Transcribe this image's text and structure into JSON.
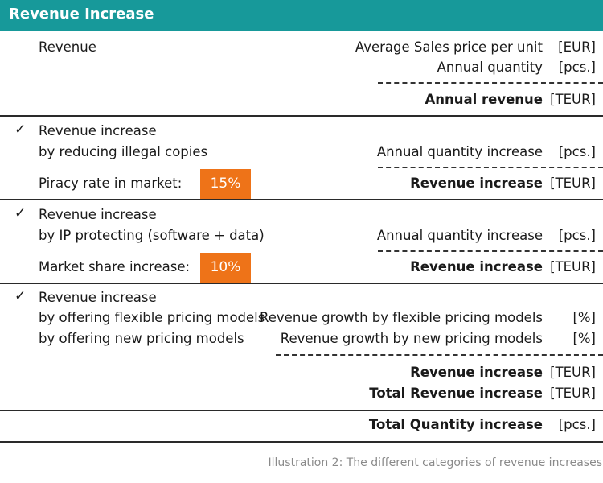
{
  "header": {
    "title": "Revenue Increase"
  },
  "section1": {
    "label": "Revenue",
    "lines": [
      {
        "text": "Average Sales price per unit",
        "unit": "[EUR]"
      },
      {
        "text": "Annual quantity",
        "unit": "[pcs.]"
      }
    ],
    "result": {
      "text": "Annual revenue",
      "unit": "[TEUR]"
    }
  },
  "section2": {
    "check": "✓",
    "line1": "Revenue increase",
    "line2": "by reducing illegal copies",
    "rate_label": "Piracy rate in market:",
    "rate_value": "15%",
    "quantity": {
      "text": "Annual quantity increase",
      "unit": "[pcs.]"
    },
    "result": {
      "text": "Revenue increase",
      "unit": "[TEUR]"
    }
  },
  "section3": {
    "check": "✓",
    "line1": "Revenue increase",
    "line2": "by IP protecting (software + data)",
    "rate_label": "Market share increase:",
    "rate_value": "10%",
    "quantity": {
      "text": "Annual quantity increase",
      "unit": "[pcs.]"
    },
    "result": {
      "text": "Revenue increase",
      "unit": "[TEUR]"
    }
  },
  "section4": {
    "check": "✓",
    "line1": "Revenue increase",
    "line2": "by offering flexible pricing models",
    "line3": "by offering new pricing models",
    "growth1": {
      "text": "Revenue growth by flexible pricing models",
      "unit": "[%]"
    },
    "growth2": {
      "text": "Revenue growth by new pricing models",
      "unit": "[%]"
    },
    "result": {
      "text": "Revenue increase",
      "unit": "[TEUR]"
    },
    "total": {
      "text": "Total Revenue increase",
      "unit": "[TEUR]"
    }
  },
  "footer_row": {
    "text": "Total Quantity increase",
    "unit": "[pcs.]"
  },
  "caption": "Illustration 2: The different categories of revenue increases",
  "colors": {
    "header": "#17999a",
    "badge": "#ee7318"
  }
}
